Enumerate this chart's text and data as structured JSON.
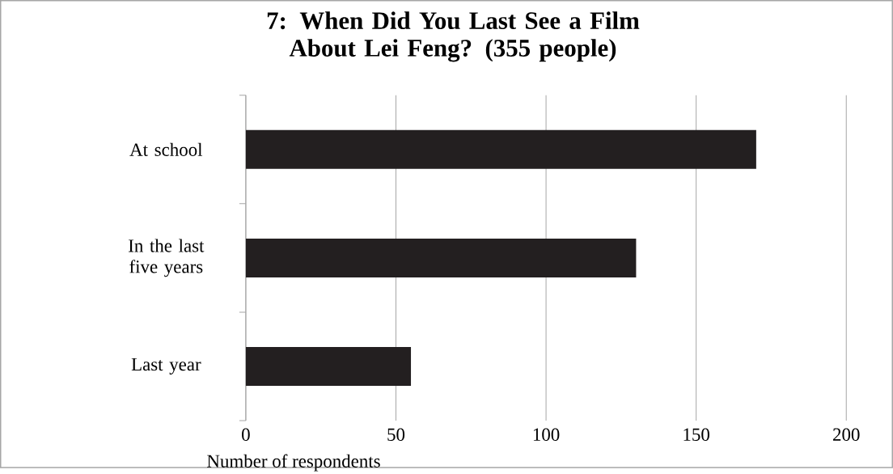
{
  "chart_data": {
    "type": "bar",
    "orientation": "horizontal",
    "title": "7: When Did You Last See a Film About Lei Feng? (355 people)",
    "xlabel": "Number of respondents",
    "categories": [
      "At school",
      "In the last five years",
      "Last year"
    ],
    "values": [
      170,
      130,
      55
    ],
    "color": "#231f20",
    "xlim": [
      0,
      200
    ],
    "xticks": [
      0,
      50,
      100,
      150,
      200
    ],
    "grid": "x"
  }
}
